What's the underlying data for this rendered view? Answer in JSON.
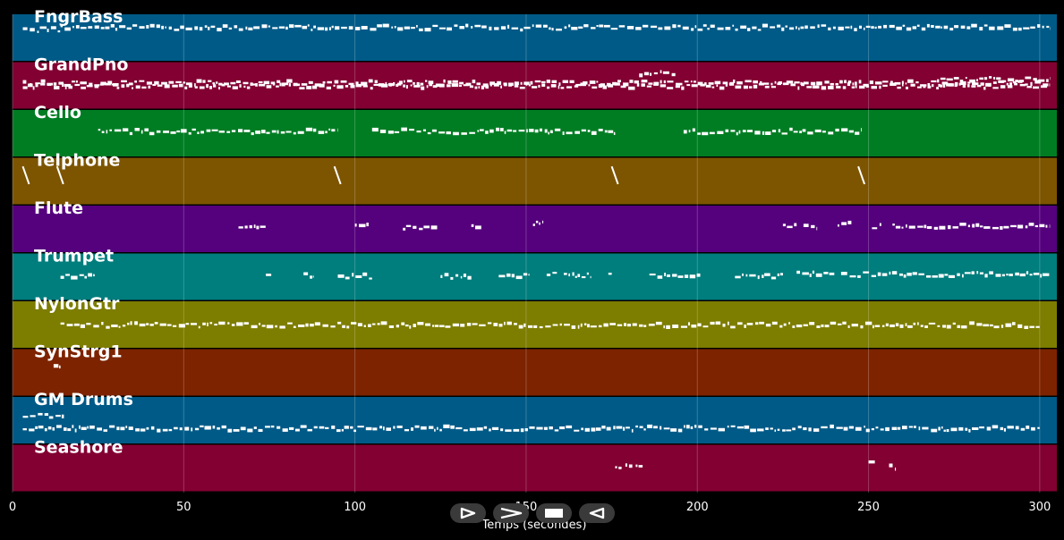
{
  "chart_data": {
    "type": "piano-roll",
    "xlabel": "Temps (secondes)",
    "xlim": [
      0,
      305
    ],
    "xticks": [
      0,
      50,
      100,
      150,
      200,
      250,
      300
    ],
    "grid": true,
    "tracks": [
      {
        "name": "FngrBass",
        "color": "#005a87",
        "segments": [
          [
            3,
            14,
            0.32
          ],
          [
            14,
            303,
            0.28
          ]
        ]
      },
      {
        "name": "GrandPno",
        "color": "#820032",
        "segments": [
          [
            3,
            303,
            0.5
          ],
          [
            3,
            303,
            0.44
          ],
          [
            183,
            194,
            0.24
          ],
          [
            270,
            303,
            0.36
          ]
        ]
      },
      {
        "name": "Cello",
        "color": "#007d23",
        "segments": [
          [
            25,
            95,
            0.45
          ],
          [
            105,
            176,
            0.45
          ],
          [
            196,
            248,
            0.45
          ]
        ]
      },
      {
        "name": "Telphone",
        "color": "#7d5500",
        "events": [
          3,
          13,
          94,
          175,
          247
        ]
      },
      {
        "name": "Flute",
        "color": "#55007d",
        "segments": [
          [
            66,
            74,
            0.47
          ],
          [
            100,
            104,
            0.42
          ],
          [
            114,
            124,
            0.47
          ],
          [
            134,
            137,
            0.44
          ],
          [
            152,
            155,
            0.38
          ],
          [
            225,
            229,
            0.44
          ],
          [
            231,
            235,
            0.44
          ],
          [
            241,
            245,
            0.4
          ],
          [
            251,
            254,
            0.44
          ],
          [
            257,
            303,
            0.43
          ]
        ]
      },
      {
        "name": "Trumpet",
        "color": "#007d7d",
        "segments": [
          [
            14,
            24,
            0.48
          ],
          [
            74,
            76,
            0.4
          ],
          [
            85,
            88,
            0.45
          ],
          [
            95,
            105,
            0.48
          ],
          [
            125,
            134,
            0.48
          ],
          [
            142,
            151,
            0.48
          ],
          [
            156,
            159,
            0.42
          ],
          [
            161,
            169,
            0.45
          ],
          [
            174,
            175,
            0.4
          ],
          [
            186,
            201,
            0.48
          ],
          [
            211,
            225,
            0.48
          ],
          [
            229,
            240,
            0.43
          ],
          [
            242,
            303,
            0.44
          ]
        ]
      },
      {
        "name": "NylonGtr",
        "color": "#7d7d00",
        "segments": [
          [
            14,
            300,
            0.5
          ]
        ]
      },
      {
        "name": "SynStrg1",
        "color": "#7d2300",
        "segments": [
          [
            12,
            14,
            0.34
          ]
        ]
      },
      {
        "name": "GM Drums",
        "color": "#005a87",
        "segments": [
          [
            3,
            15,
            0.4
          ],
          [
            3,
            300,
            0.66
          ]
        ]
      },
      {
        "name": "Seashore",
        "color": "#820032",
        "segments": [
          [
            176,
            178,
            0.47
          ],
          [
            179,
            181,
            0.47
          ],
          [
            182,
            184,
            0.47
          ],
          [
            250,
            252,
            0.4
          ],
          [
            256,
            258,
            0.47
          ]
        ]
      }
    ]
  },
  "controls": {
    "play": {
      "icon": "play-icon"
    },
    "forward": {
      "icon": "fast-forward-icon"
    },
    "stop": {
      "icon": "stop-icon"
    },
    "rewind": {
      "icon": "rewind-icon"
    }
  }
}
